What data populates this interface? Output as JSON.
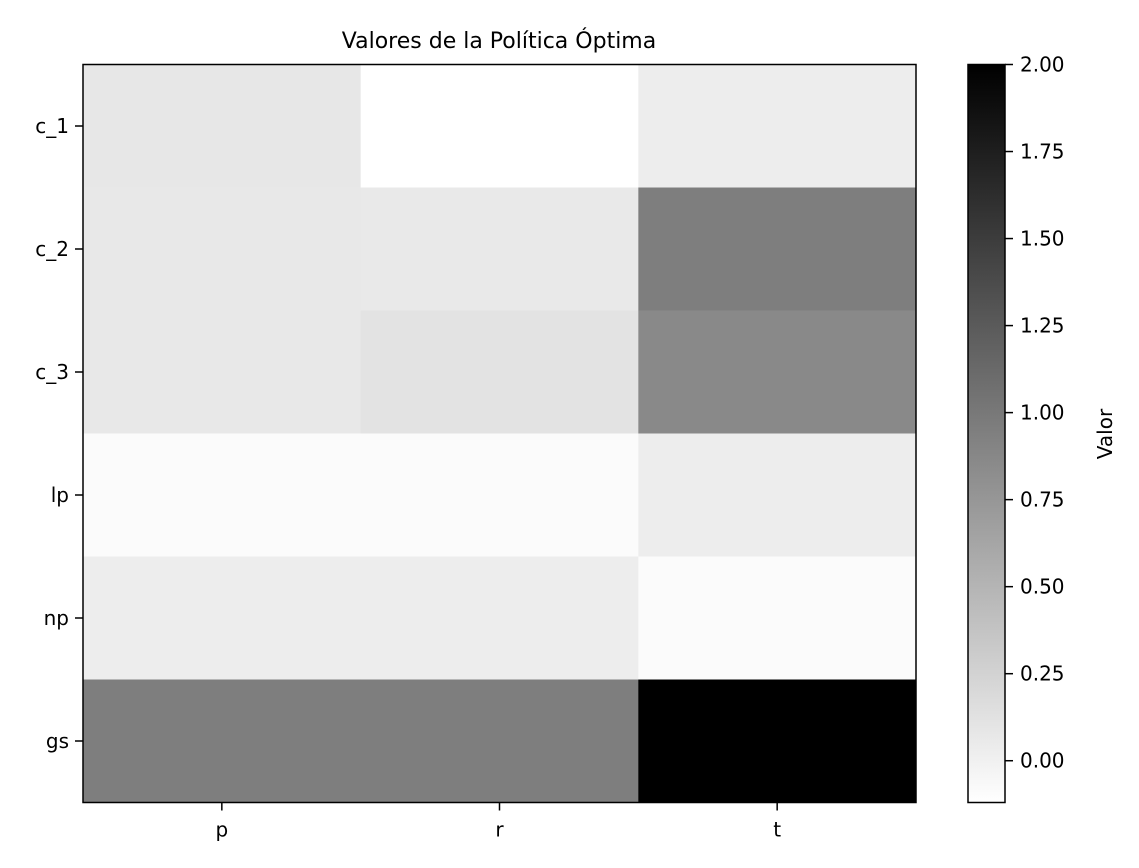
{
  "chart_data": {
    "type": "heatmap",
    "title": "Valores de la Política Óptima",
    "x_categories": [
      "p",
      "r",
      "t"
    ],
    "y_categories": [
      "c_1",
      "c_2",
      "c_3",
      "lp",
      "np",
      "gs"
    ],
    "values": [
      [
        0.08,
        -0.12,
        0.03
      ],
      [
        0.07,
        0.06,
        0.95
      ],
      [
        0.07,
        0.11,
        0.86
      ],
      [
        -0.09,
        -0.09,
        0.03
      ],
      [
        0.03,
        0.03,
        -0.09
      ],
      [
        0.95,
        0.95,
        2.0
      ]
    ],
    "colormap": "white-to-black",
    "color_low": "#ffffff",
    "color_high": "#000000",
    "vmin": -0.12,
    "vmax": 2.0,
    "colorbar": {
      "label": "Valor",
      "ticks": [
        0.0,
        0.25,
        0.5,
        0.75,
        1.0,
        1.25,
        1.5,
        1.75,
        2.0
      ],
      "tick_labels": [
        "0.00",
        "0.25",
        "0.50",
        "0.75",
        "1.00",
        "1.25",
        "1.50",
        "1.75",
        "2.00"
      ]
    }
  }
}
